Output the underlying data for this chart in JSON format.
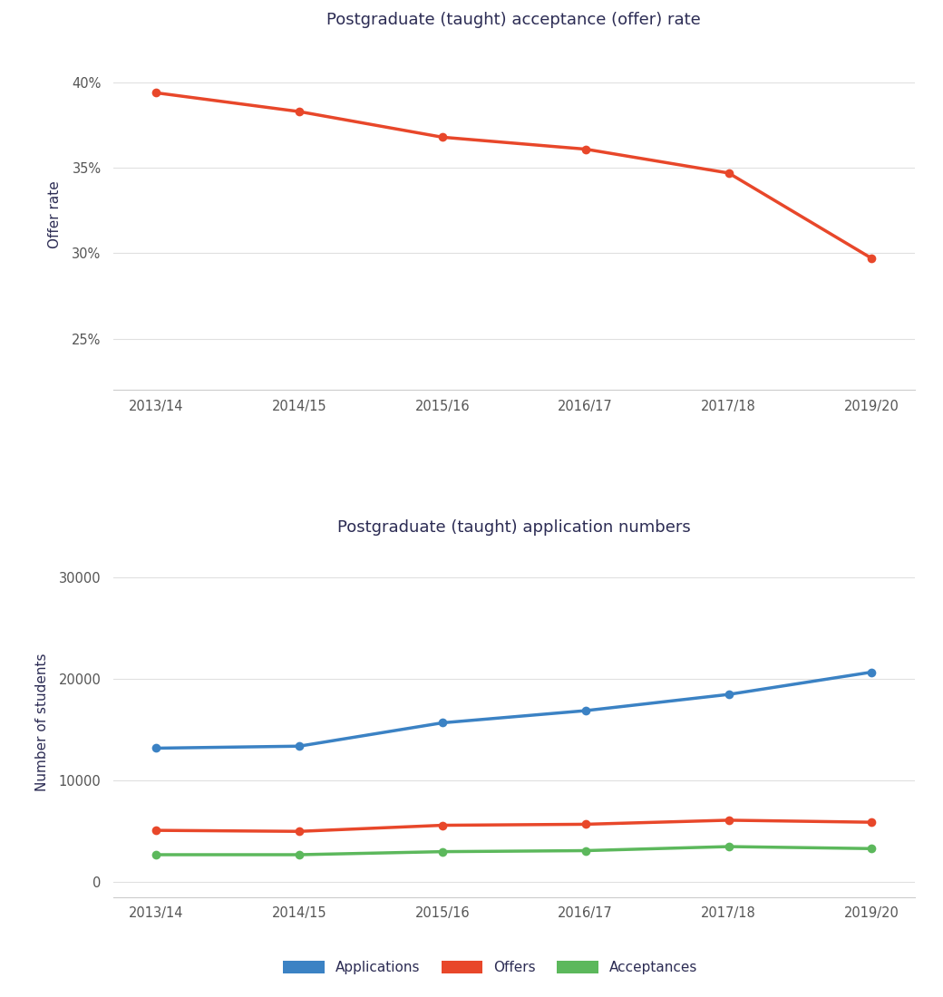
{
  "years": [
    "2013/14",
    "2014/15",
    "2015/16",
    "2016/17",
    "2017/18",
    "2019/20"
  ],
  "offer_rate": [
    0.394,
    0.383,
    0.368,
    0.361,
    0.347,
    0.297
  ],
  "applications": [
    13200,
    13400,
    15700,
    16900,
    18500,
    20700
  ],
  "offers": [
    5100,
    5000,
    5600,
    5700,
    6100,
    5900
  ],
  "acceptances": [
    2700,
    2700,
    3000,
    3100,
    3500,
    3300
  ],
  "title1": "Postgraduate (taught) acceptance (offer) rate",
  "title2": "Postgraduate (taught) application numbers",
  "ylabel1": "Offer rate",
  "ylabel2": "Number of students",
  "color_red": "#E8472A",
  "color_blue": "#3B82C4",
  "color_green": "#5CB85C",
  "legend_labels": [
    "Applications",
    "Offers",
    "Acceptances"
  ],
  "title_color": "#2C2C54",
  "axis_label_color": "#2C2C54",
  "tick_color": "#555555",
  "grid_color": "#E0E0E0",
  "spine_color": "#CCCCCC"
}
